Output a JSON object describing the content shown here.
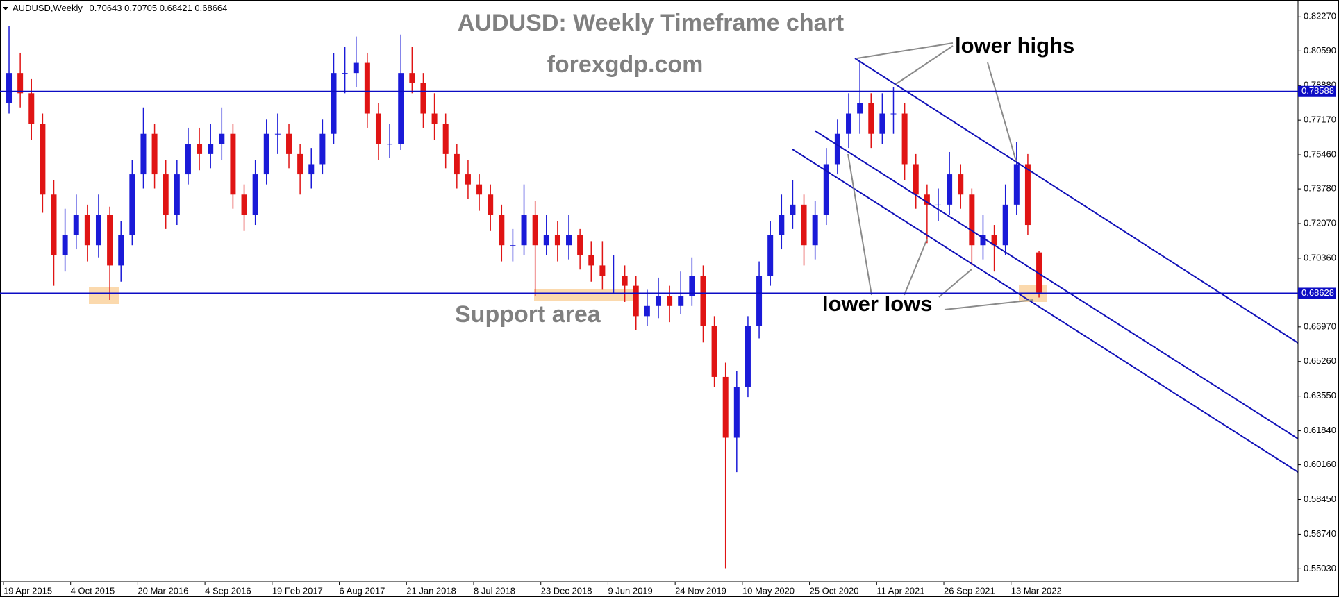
{
  "chart_data": {
    "type": "candlestick",
    "symbol": "AUDUSD,Weekly",
    "title": "AUDUSD: Weekly Timeframe chart",
    "subtitle": "forexgdp.com",
    "annotations": {
      "lower_highs": "lower highs",
      "lower_lows": "lower lows",
      "support": "Support area"
    },
    "open": [
      0.78,
      0.795,
      0.785,
      0.77,
      0.735,
      0.705,
      0.715,
      0.725,
      0.71,
      0.725,
      0.7,
      0.715,
      0.745,
      0.765,
      0.745,
      0.725,
      0.745,
      0.76,
      0.755,
      0.76,
      0.765,
      0.735,
      0.725,
      0.745,
      0.765,
      0.765,
      0.755,
      0.745,
      0.75,
      0.765,
      0.795,
      0.795,
      0.8,
      0.775,
      0.76,
      0.76,
      0.795,
      0.79,
      0.775,
      0.77,
      0.755,
      0.745,
      0.74,
      0.735,
      0.725,
      0.71,
      0.71,
      0.725,
      0.71,
      0.715,
      0.71,
      0.715,
      0.705,
      0.7,
      0.695,
      0.695,
      0.69,
      0.675,
      0.68,
      0.685,
      0.68,
      0.685,
      0.695,
      0.67,
      0.645,
      0.615,
      0.64,
      0.67,
      0.695,
      0.715,
      0.725,
      0.73,
      0.71,
      0.725,
      0.75,
      0.765,
      0.775,
      0.78,
      0.765,
      0.775,
      0.775,
      0.75,
      0.735,
      0.73,
      0.73,
      0.745,
      0.735,
      0.71,
      0.715,
      0.71,
      0.73,
      0.75,
      0.70643
    ],
    "high": [
      0.818,
      0.805,
      0.792,
      0.775,
      0.742,
      0.728,
      0.735,
      0.73,
      0.735,
      0.729,
      0.722,
      0.752,
      0.778,
      0.77,
      0.752,
      0.752,
      0.768,
      0.768,
      0.77,
      0.778,
      0.77,
      0.74,
      0.752,
      0.772,
      0.775,
      0.77,
      0.76,
      0.758,
      0.772,
      0.805,
      0.808,
      0.813,
      0.805,
      0.78,
      0.77,
      0.814,
      0.808,
      0.795,
      0.785,
      0.775,
      0.76,
      0.752,
      0.745,
      0.74,
      0.73,
      0.718,
      0.74,
      0.732,
      0.725,
      0.722,
      0.725,
      0.718,
      0.712,
      0.712,
      0.705,
      0.7,
      0.695,
      0.688,
      0.694,
      0.69,
      0.697,
      0.704,
      0.7,
      0.675,
      0.652,
      0.648,
      0.675,
      0.702,
      0.722,
      0.735,
      0.742,
      0.735,
      0.732,
      0.758,
      0.772,
      0.785,
      0.8007,
      0.785,
      0.785,
      0.788,
      0.78,
      0.755,
      0.74,
      0.738,
      0.756,
      0.75,
      0.738,
      0.725,
      0.72,
      0.74,
      0.761,
      0.755,
      0.70705
    ],
    "low": [
      0.775,
      0.778,
      0.762,
      0.726,
      0.69,
      0.697,
      0.708,
      0.702,
      0.704,
      0.683,
      0.692,
      0.71,
      0.738,
      0.738,
      0.718,
      0.72,
      0.74,
      0.747,
      0.748,
      0.752,
      0.728,
      0.717,
      0.72,
      0.74,
      0.755,
      0.748,
      0.735,
      0.738,
      0.745,
      0.76,
      0.785,
      0.788,
      0.768,
      0.752,
      0.753,
      0.757,
      0.785,
      0.768,
      0.762,
      0.748,
      0.738,
      0.733,
      0.727,
      0.717,
      0.702,
      0.702,
      0.705,
      0.685,
      0.705,
      0.702,
      0.703,
      0.698,
      0.692,
      0.688,
      0.686,
      0.682,
      0.668,
      0.67,
      0.674,
      0.672,
      0.676,
      0.68,
      0.662,
      0.64,
      0.5506,
      0.598,
      0.635,
      0.664,
      0.69,
      0.708,
      0.718,
      0.7,
      0.703,
      0.72,
      0.745,
      0.758,
      0.765,
      0.758,
      0.76,
      0.765,
      0.742,
      0.728,
      0.711,
      0.722,
      0.725,
      0.728,
      0.7,
      0.703,
      0.697,
      0.705,
      0.725,
      0.715,
      0.68421
    ],
    "close": [
      0.795,
      0.785,
      0.77,
      0.735,
      0.705,
      0.715,
      0.725,
      0.71,
      0.725,
      0.7,
      0.715,
      0.745,
      0.765,
      0.745,
      0.725,
      0.745,
      0.76,
      0.755,
      0.76,
      0.765,
      0.735,
      0.725,
      0.745,
      0.765,
      0.765,
      0.755,
      0.745,
      0.75,
      0.765,
      0.795,
      0.795,
      0.8,
      0.775,
      0.76,
      0.76,
      0.795,
      0.79,
      0.775,
      0.77,
      0.755,
      0.745,
      0.74,
      0.735,
      0.725,
      0.71,
      0.71,
      0.725,
      0.71,
      0.715,
      0.71,
      0.715,
      0.705,
      0.7,
      0.695,
      0.695,
      0.69,
      0.675,
      0.68,
      0.685,
      0.68,
      0.685,
      0.695,
      0.67,
      0.645,
      0.615,
      0.64,
      0.67,
      0.695,
      0.715,
      0.725,
      0.73,
      0.71,
      0.725,
      0.75,
      0.765,
      0.775,
      0.78,
      0.765,
      0.775,
      0.775,
      0.75,
      0.735,
      0.73,
      0.73,
      0.745,
      0.735,
      0.71,
      0.715,
      0.71,
      0.73,
      0.75,
      0.72,
      0.68664
    ],
    "up_color": "#1a1ad8",
    "down_color": "#e01414",
    "level_color": "#0c0cc4",
    "ylim": [
      0.5439,
      0.83
    ],
    "yticks": [
      {
        "value": 0.8227,
        "label": "0.82270"
      },
      {
        "value": 0.8059,
        "label": "0.80590"
      },
      {
        "value": 0.7888,
        "label": "0.78880"
      },
      {
        "value": 0.7717,
        "label": "0.77170"
      },
      {
        "value": 0.7546,
        "label": "0.75460"
      },
      {
        "value": 0.7378,
        "label": "0.73780"
      },
      {
        "value": 0.7207,
        "label": "0.72070"
      },
      {
        "value": 0.7036,
        "label": "0.70360"
      },
      {
        "value": 0.6697,
        "label": "0.66970"
      },
      {
        "value": 0.6526,
        "label": "0.65260"
      },
      {
        "value": 0.6355,
        "label": "0.63550"
      },
      {
        "value": 0.6184,
        "label": "0.61840"
      },
      {
        "value": 0.6016,
        "label": "0.60160"
      },
      {
        "value": 0.5845,
        "label": "0.58450"
      },
      {
        "value": 0.5674,
        "label": "0.56740"
      },
      {
        "value": 0.5503,
        "label": "0.55030"
      }
    ],
    "xticks": [
      {
        "value": 0,
        "label": "19 Apr 2015"
      },
      {
        "value": 6,
        "label": "4 Oct 2015"
      },
      {
        "value": 12,
        "label": "20 Mar 2016"
      },
      {
        "value": 18,
        "label": "4 Sep 2016"
      },
      {
        "value": 24,
        "label": "19 Feb 2017"
      },
      {
        "value": 30,
        "label": "6 Aug 2017"
      },
      {
        "value": 36,
        "label": "21 Jan 2018"
      },
      {
        "value": 42,
        "label": "8 Jul 2018"
      },
      {
        "value": 48,
        "label": "23 Dec 2018"
      },
      {
        "value": 54,
        "label": "9 Jun 2019"
      },
      {
        "value": 60,
        "label": "24 Nov 2019"
      },
      {
        "value": 66,
        "label": "10 May 2020"
      },
      {
        "value": 72,
        "label": "25 Oct 2020"
      },
      {
        "value": 78,
        "label": "11 Apr 2021"
      },
      {
        "value": 84,
        "label": "26 Sep 2021"
      },
      {
        "value": 90,
        "label": "13 Mar 2022"
      }
    ],
    "levels": [
      0.78588,
      0.68628
    ]
  }
}
